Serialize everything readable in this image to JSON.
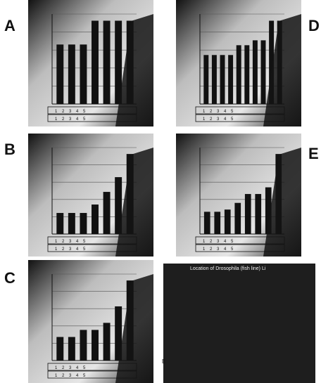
{
  "panel_labels": [
    "A",
    "D",
    "B",
    "E",
    "C"
  ],
  "photo": {
    "title": "Location of Drosophila (fish line) Li",
    "side_mark": "E"
  },
  "chart_data": [
    {
      "panel": "A",
      "type": "bar",
      "categories": [
        "1",
        "2",
        "3",
        "4",
        "5",
        "6",
        "7"
      ],
      "values": [
        1.0,
        1.0,
        1.0,
        1.4,
        1.4,
        1.4,
        1.4
      ],
      "row_labels": [
        "1",
        "2",
        "3",
        "4",
        "5"
      ]
    },
    {
      "panel": "D",
      "type": "bar",
      "categories": [
        "1",
        "2",
        "3",
        "4",
        "5",
        "6",
        "7",
        "8",
        "9",
        "10"
      ],
      "values": [
        1.0,
        1.0,
        1.0,
        1.0,
        1.2,
        1.2,
        1.3,
        1.3,
        1.7,
        1.7
      ],
      "row_labels": [
        "1",
        "2",
        "3",
        "4",
        "5"
      ]
    },
    {
      "panel": "B",
      "type": "bar",
      "categories": [
        "1",
        "2",
        "3",
        "4",
        "5",
        "6",
        "7"
      ],
      "values": [
        1.0,
        1.0,
        1.0,
        1.4,
        2.0,
        2.7,
        3.8
      ],
      "row_labels": [
        "1",
        "2",
        "3",
        "4",
        "5"
      ]
    },
    {
      "panel": "E",
      "type": "bar",
      "categories": [
        "1",
        "2",
        "3",
        "4",
        "5",
        "6",
        "7",
        "8"
      ],
      "values": [
        1.0,
        1.0,
        1.1,
        1.4,
        1.8,
        1.8,
        2.1,
        3.6
      ],
      "row_labels": [
        "1",
        "2",
        "3",
        "4",
        "5"
      ]
    },
    {
      "panel": "C",
      "type": "bar",
      "categories": [
        "1",
        "2",
        "3",
        "4",
        "5",
        "6",
        "7"
      ],
      "values": [
        1.0,
        1.0,
        1.3,
        1.3,
        1.6,
        2.3,
        3.4
      ],
      "row_labels": [
        "1",
        "2",
        "3",
        "4",
        "5"
      ]
    }
  ]
}
